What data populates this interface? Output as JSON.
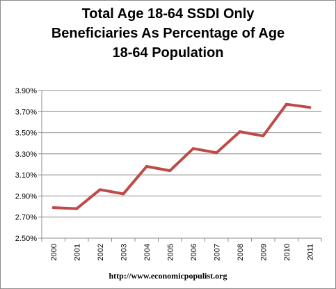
{
  "chart_data": {
    "type": "line",
    "title_lines": [
      "Total Age 18-64  SSDI Only",
      "Beneficiaries As Percentage of Age",
      "18-64 Population"
    ],
    "categories": [
      "2000",
      "2001",
      "2002",
      "2003",
      "2004",
      "2005",
      "2006",
      "2007",
      "2008",
      "2009",
      "2010",
      "2011"
    ],
    "series": [
      {
        "values": [
          0.0279,
          0.0278,
          0.0296,
          0.0292,
          0.0318,
          0.0314,
          0.0335,
          0.0331,
          0.0351,
          0.0347,
          0.0377,
          0.0374
        ],
        "color": "#be4b48"
      }
    ],
    "y_ticks": [
      "2.50%",
      "2.70%",
      "2.90%",
      "3.10%",
      "3.30%",
      "3.50%",
      "3.70%",
      "3.90%"
    ],
    "ylim": [
      0.025,
      0.039
    ],
    "grid": "horizontal",
    "legend": "none",
    "xlabel": "",
    "ylabel": ""
  },
  "footer": "http://www.economicpopulist.org"
}
